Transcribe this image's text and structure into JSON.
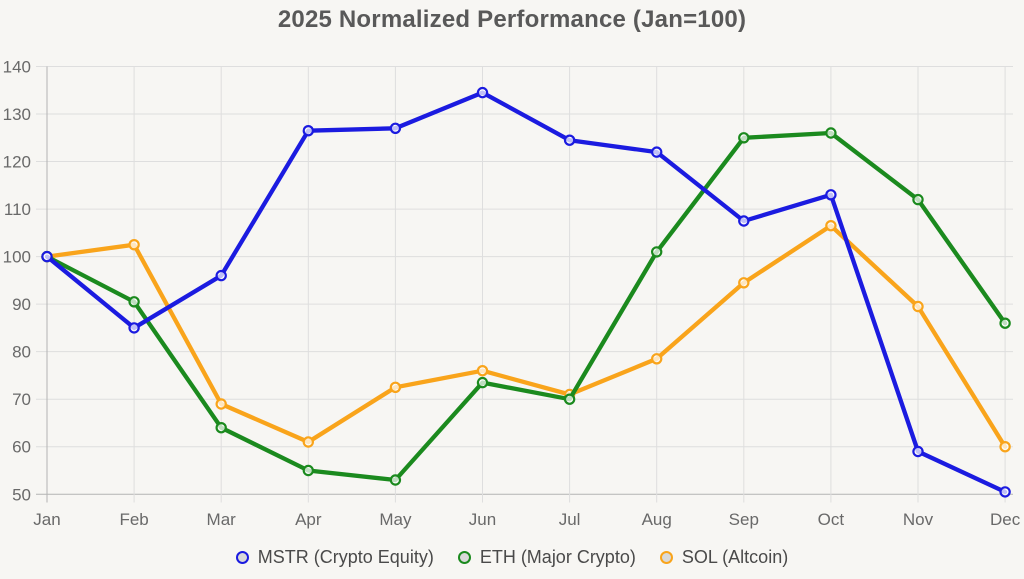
{
  "chart_data": {
    "type": "line",
    "title": "2025 Normalized Performance (Jan=100)",
    "categories": [
      "Jan",
      "Feb",
      "Mar",
      "Apr",
      "May",
      "Jun",
      "Jul",
      "Aug",
      "Sep",
      "Oct",
      "Nov",
      "Dec"
    ],
    "xlabel": "",
    "ylabel": "",
    "ylim": [
      50,
      140
    ],
    "ytick_step": 10,
    "ytick_labels": [
      "50",
      "60",
      "70",
      "80",
      "90",
      "100",
      "110",
      "120",
      "130",
      "140"
    ],
    "grid": true,
    "legend_position": "bottom",
    "series": [
      {
        "name": "MSTR (Crypto Equity)",
        "color": "#1b1be0",
        "values": [
          100,
          85,
          96,
          126.5,
          127,
          134.5,
          124.5,
          122,
          107.5,
          113,
          59,
          50.5
        ]
      },
      {
        "name": "ETH (Major Crypto)",
        "color": "#1b8a1e",
        "values": [
          100,
          90.5,
          64,
          55,
          53,
          73.5,
          70,
          101,
          125,
          126,
          112,
          86
        ]
      },
      {
        "name": "SOL (Altcoin)",
        "color": "#f9a41b",
        "values": [
          100,
          102.5,
          69,
          61,
          72.5,
          76,
          71,
          78.5,
          94.5,
          106.5,
          89.5,
          60
        ]
      }
    ],
    "colors": {
      "background": "#f7f6f3",
      "gridline": "#dedede",
      "axis": "#b3b3b3",
      "tick_label": "#696969",
      "title": "#595959",
      "legend_text": "#4a4a4a",
      "legend_marker_fill": "#d9d9d9"
    }
  }
}
